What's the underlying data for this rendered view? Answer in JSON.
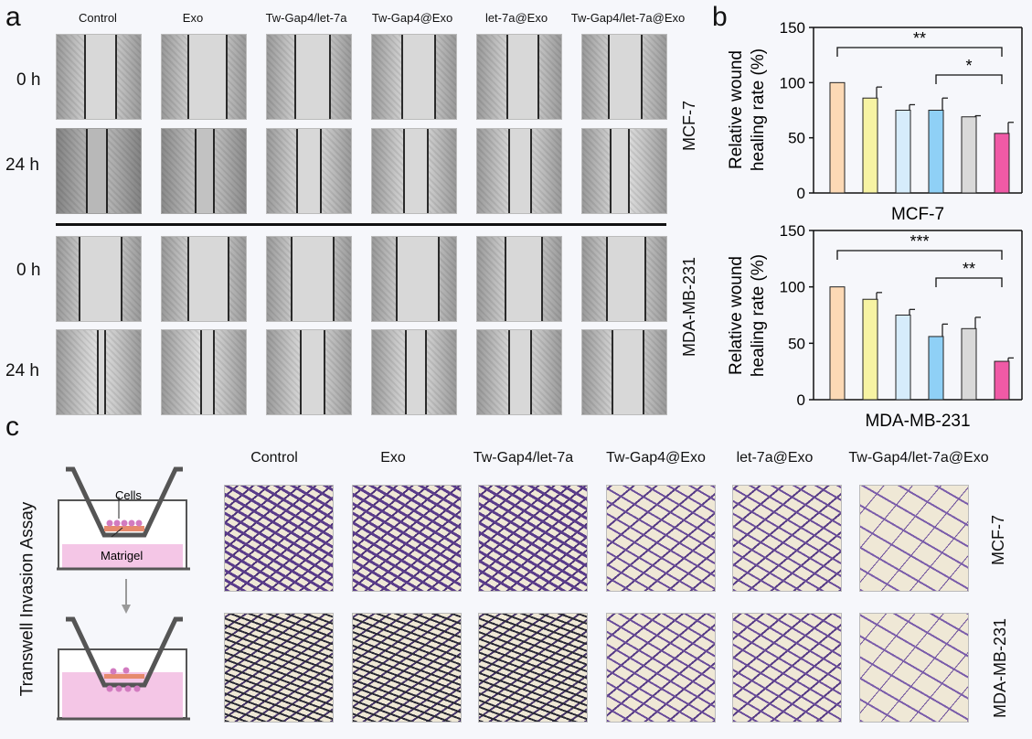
{
  "panels": {
    "a": "a",
    "b": "b",
    "c": "c"
  },
  "scratch": {
    "columns": [
      "Control",
      "Exo",
      "Tw-Gap4/let-7a",
      "Tw-Gap4@Exo",
      "let-7a@Exo",
      "Tw-Gap4/let-7a@Exo"
    ],
    "time_labels": [
      "0 h",
      "24 h"
    ],
    "cell_lines": [
      "MCF-7",
      "MDA-MB-231"
    ]
  },
  "transwell": {
    "title": "Transwell Invasion Assay",
    "columns": [
      "Control",
      "Exo",
      "Tw-Gap4/let-7a",
      "Tw-Gap4@Exo",
      "let-7a@Exo",
      "Tw-Gap4/let-7a@Exo"
    ],
    "cell_lines": [
      "MCF-7",
      "MDA-MB-231"
    ],
    "diagram_labels": {
      "cells": "Cells",
      "matrigel": "Matrigel"
    }
  },
  "chart_data": [
    {
      "type": "bar",
      "title": "MCF-7",
      "ylabel": "Relative wound healing rate (%)",
      "ylim": [
        0,
        150
      ],
      "yticks": [
        0,
        50,
        100,
        150
      ],
      "categories": [
        "Control",
        "Exo",
        "Tw-Gap4/let-7a",
        "Tw-Gap4@Exo",
        "let-7a@Exo",
        "Tw-Gap4/let-7a@Exo"
      ],
      "values": [
        100,
        86,
        75,
        75,
        69,
        54
      ],
      "errors": [
        0,
        10,
        5,
        11,
        1,
        10
      ],
      "colors": [
        "#fcd9b5",
        "#f7f3a3",
        "#d6ecfb",
        "#8fd0f6",
        "#d9d9d9",
        "#f05aa6"
      ],
      "significance": [
        {
          "from": 0,
          "to": 5,
          "label": "**"
        },
        {
          "from": 3,
          "to": 5,
          "label": "*"
        }
      ]
    },
    {
      "type": "bar",
      "title": "MDA-MB-231",
      "ylabel": "Relative wound healing rate (%)",
      "ylim": [
        0,
        150
      ],
      "yticks": [
        0,
        50,
        100,
        150
      ],
      "categories": [
        "Control",
        "Exo",
        "Tw-Gap4/let-7a",
        "Tw-Gap4@Exo",
        "let-7a@Exo",
        "Tw-Gap4/let-7a@Exo"
      ],
      "values": [
        100,
        89,
        75,
        56,
        63,
        34
      ],
      "errors": [
        0,
        6,
        5,
        11,
        10,
        3
      ],
      "colors": [
        "#fcd9b5",
        "#f7f3a3",
        "#d6ecfb",
        "#8fd0f6",
        "#d9d9d9",
        "#f05aa6"
      ],
      "significance": [
        {
          "from": 0,
          "to": 5,
          "label": "***"
        },
        {
          "from": 3,
          "to": 5,
          "label": "**"
        }
      ]
    }
  ]
}
